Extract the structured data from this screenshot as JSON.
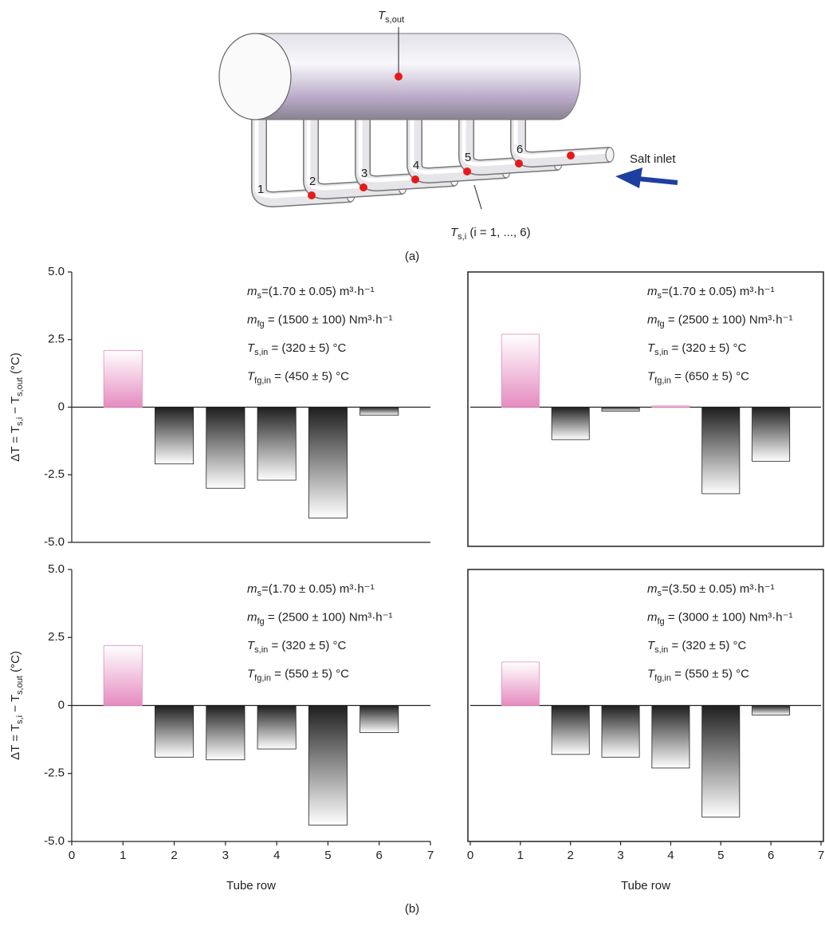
{
  "figure": {
    "panel_a": "(a)",
    "panel_b": "(b)"
  },
  "diagram": {
    "outlet_label": [
      "T",
      "s,out"
    ],
    "tube_numbers": [
      "1",
      "2",
      "3",
      "4",
      "5",
      "6"
    ],
    "inlet_label": "Salt inlet",
    "tube_label": [
      "T",
      "s,i",
      " (i = 1, ..., 6)"
    ]
  },
  "chart_data": [
    {
      "type": "bar",
      "x": [
        1,
        2,
        3,
        4,
        5,
        6
      ],
      "values": [
        2.1,
        -2.1,
        -3.0,
        -2.7,
        -4.1,
        -0.3
      ],
      "xlim": [
        0,
        7
      ],
      "ylim": [
        -5,
        5
      ],
      "yticks": [
        {
          "value": 5,
          "label": "5.0"
        },
        2.5,
        0,
        -2.5,
        {
          "value": -5,
          "label": "-5.0"
        }
      ],
      "ylabel": [
        "ΔT = T",
        "s,i",
        " − T",
        "s,out",
        " (°C)"
      ],
      "annotations": [
        [
          "m",
          "s",
          "=(1.70 ± 0.05) m³·h⁻¹"
        ],
        [
          "m",
          "fg",
          " = (1500 ± 100) Nm³·h⁻¹"
        ],
        [
          "T",
          "s,in",
          " = (320 ± 5) °C"
        ],
        [
          "T",
          "fg,in",
          " = (450 ± 5) °C"
        ]
      ],
      "positive_color": "#e58cc0",
      "negative_color": "#1e1e1e",
      "frame": false
    },
    {
      "type": "bar",
      "x": [
        1,
        2,
        3,
        4,
        5,
        6
      ],
      "values": [
        2.7,
        -1.2,
        -0.15,
        0.05,
        -3.2,
        -2.0
      ],
      "xlim": [
        0,
        7
      ],
      "ylim": [
        -5,
        5
      ],
      "annotations": [
        [
          "m",
          "s",
          "=(1.70 ± 0.05) m³·h⁻¹"
        ],
        [
          "m",
          "fg",
          " = (2500 ± 100) Nm³·h⁻¹"
        ],
        [
          "T",
          "s,in",
          " = (320 ± 5) °C"
        ],
        [
          "T",
          "fg,in",
          " = (650 ± 5) °C"
        ]
      ],
      "positive_color": "#e58cc0",
      "negative_color": "#1e1e1e",
      "frame": true
    },
    {
      "type": "bar",
      "x": [
        1,
        2,
        3,
        4,
        5,
        6
      ],
      "values": [
        2.2,
        -1.9,
        -2.0,
        -1.6,
        -4.4,
        -1.0
      ],
      "xlim": [
        0,
        7
      ],
      "ylim": [
        -5,
        5
      ],
      "yticks": [
        {
          "value": 5,
          "label": "5.0"
        },
        2.5,
        0,
        -2.5,
        {
          "value": -5,
          "label": "-5.0"
        }
      ],
      "xticks": [
        0,
        1,
        2,
        3,
        4,
        5,
        6,
        7
      ],
      "xlabel": "Tube row",
      "ylabel": [
        "ΔT = T",
        "s,i",
        " − T",
        "s,out",
        " (°C)"
      ],
      "annotations": [
        [
          "m",
          "s",
          "=(1.70 ± 0.05) m³·h⁻¹"
        ],
        [
          "m",
          "fg",
          " = (2500 ± 100) Nm³·h⁻¹"
        ],
        [
          "T",
          "s,in",
          " = (320 ± 5) °C"
        ],
        [
          "T",
          "fg,in",
          " = (550 ± 5) °C"
        ]
      ],
      "positive_color": "#e58cc0",
      "negative_color": "#1e1e1e",
      "frame": false
    },
    {
      "type": "bar",
      "x": [
        1,
        2,
        3,
        4,
        5,
        6
      ],
      "values": [
        1.6,
        -1.8,
        -1.9,
        -2.3,
        -4.1,
        -0.35
      ],
      "xlim": [
        0,
        7
      ],
      "ylim": [
        -5,
        5
      ],
      "xticks": [
        0,
        1,
        2,
        3,
        4,
        5,
        6,
        7
      ],
      "xlabel": "Tube row",
      "annotations": [
        [
          "m",
          "s",
          "=(3.50 ± 0.05) m³·h⁻¹"
        ],
        [
          "m",
          "fg",
          " = (3000 ± 100) Nm³·h⁻¹"
        ],
        [
          "T",
          "s,in",
          " = (320 ± 5) °C"
        ],
        [
          "T",
          "fg,in",
          " = (550 ± 5) °C"
        ]
      ],
      "positive_color": "#e58cc0",
      "negative_color": "#1e1e1e",
      "frame": true
    }
  ]
}
